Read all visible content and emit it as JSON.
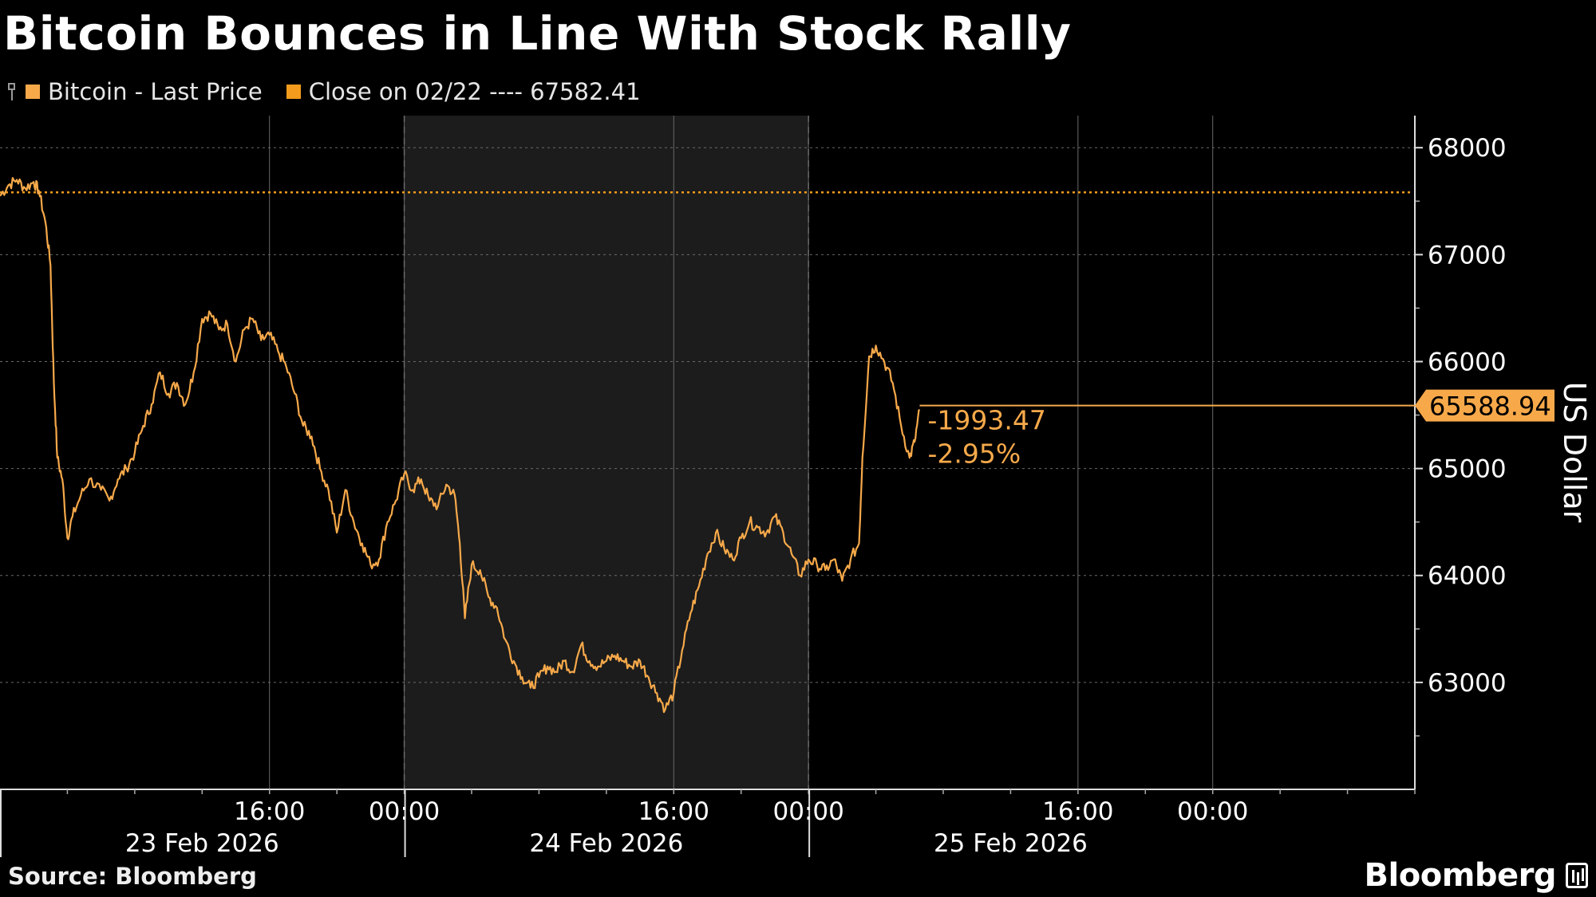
{
  "title": "Bitcoin Bounces in Line With Stock Rally",
  "legend": {
    "series_label": "Bitcoin - Last Price",
    "close_label": "Close on 02/22 ---- 67582.41"
  },
  "source": "Source: Bloomberg",
  "brand": "Bloomberg",
  "colors": {
    "line": "#f7a94a",
    "close": "#f29b1c",
    "shade": "#1c1c1c",
    "grid": "#6a6a6a",
    "background": "#000000"
  },
  "chart_data": {
    "type": "line",
    "ylabel": "US Dollar",
    "ylim": [
      62000,
      68300
    ],
    "yticks": [
      63000,
      64000,
      65000,
      66000,
      67000,
      68000
    ],
    "xlim_hours": [
      0,
      84
    ],
    "time_ticks": [
      {
        "h": 16,
        "label": "16:00"
      },
      {
        "h": 24,
        "label": "00:00"
      },
      {
        "h": 40,
        "label": "16:00"
      },
      {
        "h": 48,
        "label": "00:00"
      },
      {
        "h": 64,
        "label": "16:00"
      },
      {
        "h": 72,
        "label": "00:00"
      }
    ],
    "day_labels": [
      {
        "h": 12,
        "label": "23 Feb 2026"
      },
      {
        "h": 36,
        "label": "24 Feb 2026"
      },
      {
        "h": 60,
        "label": "25 Feb 2026"
      }
    ],
    "day_boundaries_hours": [
      24,
      48
    ],
    "shaded_hours": [
      24,
      48
    ],
    "reference": {
      "name": "Close on 02/22",
      "value": 67582.41
    },
    "last": {
      "value": 65588.94,
      "label": "65588.94",
      "change": "-1993.47",
      "pct": "-2.95%"
    },
    "series": [
      {
        "name": "Bitcoin - Last Price",
        "points": [
          [
            0.0,
            67550
          ],
          [
            0.5,
            67650
          ],
          [
            1.0,
            67700
          ],
          [
            1.5,
            67620
          ],
          [
            2.0,
            67680
          ],
          [
            2.3,
            67600
          ],
          [
            2.7,
            67300
          ],
          [
            3.0,
            66900
          ],
          [
            3.2,
            65800
          ],
          [
            3.4,
            65100
          ],
          [
            3.7,
            64900
          ],
          [
            4.0,
            64350
          ],
          [
            4.3,
            64550
          ],
          [
            4.8,
            64750
          ],
          [
            5.3,
            64900
          ],
          [
            6.0,
            64800
          ],
          [
            6.5,
            64700
          ],
          [
            7.0,
            64900
          ],
          [
            7.5,
            65000
          ],
          [
            8.0,
            65150
          ],
          [
            8.5,
            65400
          ],
          [
            9.0,
            65600
          ],
          [
            9.5,
            65900
          ],
          [
            10.0,
            65700
          ],
          [
            10.5,
            65800
          ],
          [
            11.0,
            65600
          ],
          [
            11.5,
            65900
          ],
          [
            12.0,
            66400
          ],
          [
            12.5,
            66450
          ],
          [
            13.0,
            66300
          ],
          [
            13.5,
            66350
          ],
          [
            14.0,
            66000
          ],
          [
            14.5,
            66300
          ],
          [
            15.0,
            66400
          ],
          [
            15.5,
            66200
          ],
          [
            16.0,
            66250
          ],
          [
            16.5,
            66100
          ],
          [
            17.0,
            65950
          ],
          [
            17.5,
            65700
          ],
          [
            18.0,
            65400
          ],
          [
            18.5,
            65300
          ],
          [
            19.0,
            65000
          ],
          [
            19.5,
            64800
          ],
          [
            20.0,
            64400
          ],
          [
            20.5,
            64800
          ],
          [
            21.0,
            64500
          ],
          [
            21.5,
            64300
          ],
          [
            22.0,
            64100
          ],
          [
            22.5,
            64150
          ],
          [
            23.0,
            64500
          ],
          [
            23.5,
            64700
          ],
          [
            24.0,
            64950
          ],
          [
            24.5,
            64800
          ],
          [
            25.0,
            64900
          ],
          [
            25.5,
            64700
          ],
          [
            26.0,
            64650
          ],
          [
            26.5,
            64850
          ],
          [
            27.0,
            64750
          ],
          [
            27.3,
            64300
          ],
          [
            27.6,
            63600
          ],
          [
            28.0,
            64100
          ],
          [
            28.5,
            64050
          ],
          [
            29.0,
            63800
          ],
          [
            29.5,
            63700
          ],
          [
            30.0,
            63400
          ],
          [
            30.5,
            63200
          ],
          [
            31.0,
            63050
          ],
          [
            31.5,
            62950
          ],
          [
            32.0,
            63050
          ],
          [
            32.5,
            63150
          ],
          [
            33.0,
            63100
          ],
          [
            33.5,
            63200
          ],
          [
            34.0,
            63100
          ],
          [
            34.5,
            63350
          ],
          [
            35.0,
            63200
          ],
          [
            35.5,
            63150
          ],
          [
            36.0,
            63200
          ],
          [
            36.5,
            63250
          ],
          [
            37.0,
            63200
          ],
          [
            37.5,
            63150
          ],
          [
            38.0,
            63200
          ],
          [
            38.5,
            63050
          ],
          [
            39.0,
            62900
          ],
          [
            39.5,
            62750
          ],
          [
            40.0,
            62900
          ],
          [
            40.5,
            63300
          ],
          [
            41.0,
            63650
          ],
          [
            41.5,
            63900
          ],
          [
            42.0,
            64200
          ],
          [
            42.5,
            64400
          ],
          [
            43.0,
            64250
          ],
          [
            43.5,
            64150
          ],
          [
            44.0,
            64350
          ],
          [
            44.5,
            64500
          ],
          [
            45.0,
            64450
          ],
          [
            45.5,
            64400
          ],
          [
            46.0,
            64550
          ],
          [
            46.5,
            64400
          ],
          [
            47.0,
            64200
          ],
          [
            47.5,
            64000
          ],
          [
            48.0,
            64150
          ],
          [
            48.5,
            64100
          ],
          [
            49.0,
            64050
          ],
          [
            49.5,
            64150
          ],
          [
            50.0,
            63950
          ],
          [
            50.5,
            64150
          ],
          [
            51.0,
            64300
          ],
          [
            51.2,
            65100
          ],
          [
            51.6,
            66050
          ],
          [
            52.0,
            66150
          ],
          [
            52.5,
            66000
          ],
          [
            53.0,
            65800
          ],
          [
            53.5,
            65400
          ],
          [
            54.0,
            65100
          ],
          [
            54.3,
            65250
          ],
          [
            54.6,
            65550
          ]
        ]
      }
    ]
  }
}
